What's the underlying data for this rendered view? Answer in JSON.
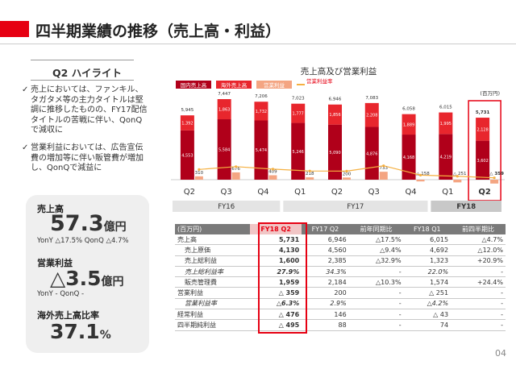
{
  "page": {
    "title": "四半期業績の推移（売上高・利益）",
    "page_number": "04",
    "accent": "#e60012"
  },
  "highlight": {
    "heading": "Q2 ハイライト",
    "bullets": [
      "売上においては、ファンキル、タガタメ等の主力タイトルは堅調に推移したものの、FY17配信タイトルの苦戦に伴い、QonQで減収に",
      "営業利益においては、広告宣伝費の増加等に伴い販管費が増加し、QonQで減益に"
    ],
    "check_mark": "✓"
  },
  "kpis": {
    "sales": {
      "label": "売上高",
      "value": "57.3",
      "unit": "億円",
      "sub": "YonY △17.5%  QonQ △4.7%"
    },
    "op_income": {
      "label": "営業利益",
      "value": "△3.5",
      "unit": "億円",
      "sub": "YonY  -        QonQ  -"
    },
    "overseas": {
      "label": "海外売上高比率",
      "value": "37.1",
      "unit": "%"
    }
  },
  "chart_data": {
    "type": "bar",
    "title": "売上高及び営業利益",
    "unit_label": "(百万円)",
    "legend": [
      "国内売上高",
      "海外売上高",
      "営業利益",
      "営業利益率"
    ],
    "categories": [
      "Q2",
      "Q3",
      "Q4",
      "Q1",
      "Q2",
      "Q3",
      "Q4",
      "Q1",
      "Q2"
    ],
    "fiscal_years": [
      {
        "label": "FY16",
        "span": 3
      },
      {
        "label": "FY17",
        "span": 4
      },
      {
        "label": "FY18",
        "span": 2
      }
    ],
    "series": [
      {
        "name": "国内売上高",
        "values": [
          4553,
          5584,
          5474,
          5246,
          5090,
          4876,
          4168,
          4219,
          3602
        ]
      },
      {
        "name": "海外売上高",
        "values": [
          1392,
          1863,
          1732,
          1777,
          1856,
          2208,
          1889,
          1995,
          2128
        ]
      },
      {
        "name": "営業利益",
        "values": [
          310,
          676,
          409,
          218,
          200,
          733,
          -158,
          -251,
          -359
        ]
      }
    ],
    "totals": [
      5945,
      7447,
      7206,
      7023,
      6946,
      7083,
      6058,
      6015,
      5731
    ],
    "op_labels": [
      "310",
      "676",
      "409",
      "218",
      "200",
      "733",
      "△ 158",
      "△ 251",
      "△ 359"
    ],
    "op_margin_points": [
      5.2,
      9.1,
      5.7,
      3.1,
      2.9,
      10.3,
      -2.6,
      -4.2,
      -6.3
    ],
    "colors": {
      "domestic": "#b0001a",
      "overseas": "#e8262d",
      "op": "#f4a582",
      "margin": "#f5b041"
    },
    "ylim": [
      -500,
      8000
    ]
  },
  "table": {
    "headers": [
      "(百万円)",
      "FY18 Q2",
      "FY17 Q2",
      "前年同期比",
      "FY18 Q1",
      "前四半期比"
    ],
    "rows": [
      {
        "label": "売上高",
        "cells": [
          "5,731",
          "6,946",
          "△17.5%",
          "6,015",
          "△4.7%"
        ],
        "italic": false
      },
      {
        "label": "売上原価",
        "cells": [
          "4,130",
          "4,560",
          "△9.4%",
          "4,692",
          "△12.0%"
        ],
        "italic": false
      },
      {
        "label": "売上総利益",
        "cells": [
          "1,600",
          "2,385",
          "△32.9%",
          "1,323",
          "+20.9%"
        ],
        "italic": false
      },
      {
        "label": "売上総利益率",
        "cells": [
          "27.9%",
          "34.3%",
          "-",
          "22.0%",
          "-"
        ],
        "italic": true
      },
      {
        "label": "販売管理費",
        "cells": [
          "1,959",
          "2,184",
          "△10.3%",
          "1,574",
          "+24.4%"
        ],
        "italic": false
      },
      {
        "label": "営業利益",
        "cells": [
          "△ 359",
          "200",
          "-",
          "△ 251",
          "-"
        ],
        "italic": false
      },
      {
        "label": "営業利益率",
        "cells": [
          "△6.3%",
          "2.9%",
          "-",
          "△4.2%",
          "-"
        ],
        "italic": true
      },
      {
        "label": "経常利益",
        "cells": [
          "△ 476",
          "146",
          "-",
          "△ 43",
          "-"
        ],
        "italic": false
      },
      {
        "label": "四半期純利益",
        "cells": [
          "△ 495",
          "88",
          "-",
          "74",
          "-"
        ],
        "italic": false
      }
    ]
  }
}
